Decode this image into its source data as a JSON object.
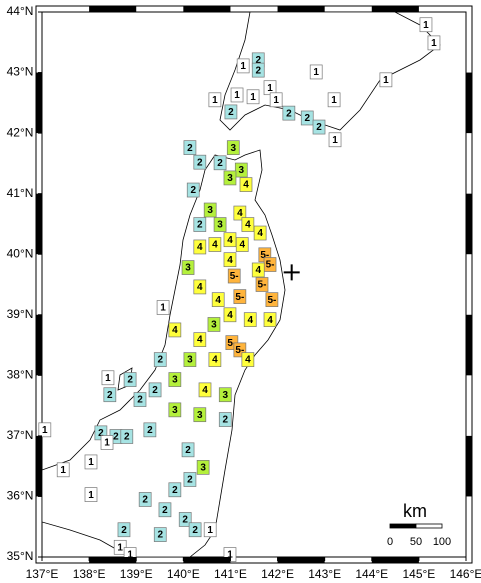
{
  "map": {
    "lonlim": [
      137,
      146
    ],
    "latlim": [
      35,
      44
    ],
    "xticks": [
      {
        "value": 137,
        "label": "137°E"
      },
      {
        "value": 138,
        "label": "138°E"
      },
      {
        "value": 139,
        "label": "139°E"
      },
      {
        "value": 140,
        "label": "140°E"
      },
      {
        "value": 141,
        "label": "141°E"
      },
      {
        "value": 142,
        "label": "142°E"
      },
      {
        "value": 143,
        "label": "143°E"
      },
      {
        "value": 144,
        "label": "144°E"
      },
      {
        "value": 145,
        "label": "145°E"
      },
      {
        "value": 146,
        "label": "146°E"
      }
    ],
    "yticks": [
      {
        "value": 35,
        "label": "35°N"
      },
      {
        "value": 36,
        "label": "36°N"
      },
      {
        "value": 37,
        "label": "37°N"
      },
      {
        "value": 38,
        "label": "38°N"
      },
      {
        "value": 39,
        "label": "39°N"
      },
      {
        "value": 40,
        "label": "40°N"
      },
      {
        "value": 41,
        "label": "41°N"
      },
      {
        "value": 42,
        "label": "42°N"
      },
      {
        "value": 43,
        "label": "43°N"
      },
      {
        "value": 44,
        "label": "44°N"
      }
    ],
    "intensity_colors": {
      "1": "#ffffff",
      "2": "#a6e3e3",
      "3": "#b4f03c",
      "4": "#ffff3c",
      "5-": "#ffb43c"
    },
    "epicenter": {
      "lon": 142.3,
      "lat": 39.7
    },
    "scale": {
      "unit": "km",
      "ticks": [
        0,
        50,
        100
      ]
    },
    "stations": [
      {
        "lon": 141.59,
        "lat": 43.21,
        "intensity": "2"
      },
      {
        "lon": 141.59,
        "lat": 43.04,
        "intensity": "2"
      },
      {
        "lon": 141.27,
        "lat": 43.11,
        "intensity": "1"
      },
      {
        "lon": 141.14,
        "lat": 42.63,
        "intensity": "1"
      },
      {
        "lon": 141.48,
        "lat": 42.6,
        "intensity": "1"
      },
      {
        "lon": 141.84,
        "lat": 42.75,
        "intensity": "1"
      },
      {
        "lon": 141.97,
        "lat": 42.55,
        "intensity": "1"
      },
      {
        "lon": 141.01,
        "lat": 42.35,
        "intensity": "2"
      },
      {
        "lon": 142.24,
        "lat": 42.33,
        "intensity": "2"
      },
      {
        "lon": 142.63,
        "lat": 42.25,
        "intensity": "2"
      },
      {
        "lon": 142.88,
        "lat": 42.1,
        "intensity": "2"
      },
      {
        "lon": 142.82,
        "lat": 43.01,
        "intensity": "1"
      },
      {
        "lon": 143.2,
        "lat": 42.55,
        "intensity": "1"
      },
      {
        "lon": 143.22,
        "lat": 41.89,
        "intensity": "1"
      },
      {
        "lon": 145.15,
        "lat": 43.79,
        "intensity": "1"
      },
      {
        "lon": 145.32,
        "lat": 43.49,
        "intensity": "1"
      },
      {
        "lon": 144.3,
        "lat": 42.88,
        "intensity": "1"
      },
      {
        "lon": 140.67,
        "lat": 42.55,
        "intensity": "1"
      },
      {
        "lon": 140.14,
        "lat": 41.76,
        "intensity": "2"
      },
      {
        "lon": 140.35,
        "lat": 41.52,
        "intensity": "2"
      },
      {
        "lon": 140.78,
        "lat": 41.51,
        "intensity": "2"
      },
      {
        "lon": 141.06,
        "lat": 41.76,
        "intensity": "3"
      },
      {
        "lon": 141.23,
        "lat": 41.39,
        "intensity": "3"
      },
      {
        "lon": 141.33,
        "lat": 41.15,
        "intensity": "4"
      },
      {
        "lon": 140.99,
        "lat": 41.26,
        "intensity": "3"
      },
      {
        "lon": 140.21,
        "lat": 41.06,
        "intensity": "2"
      },
      {
        "lon": 140.57,
        "lat": 40.73,
        "intensity": "3"
      },
      {
        "lon": 140.35,
        "lat": 40.49,
        "intensity": "2"
      },
      {
        "lon": 140.78,
        "lat": 40.49,
        "intensity": "3"
      },
      {
        "lon": 141.2,
        "lat": 40.68,
        "intensity": "4"
      },
      {
        "lon": 141.37,
        "lat": 40.49,
        "intensity": "4"
      },
      {
        "lon": 140.99,
        "lat": 40.24,
        "intensity": "4"
      },
      {
        "lon": 140.35,
        "lat": 40.12,
        "intensity": "4"
      },
      {
        "lon": 140.67,
        "lat": 40.16,
        "intensity": "4"
      },
      {
        "lon": 141.25,
        "lat": 40.16,
        "intensity": "4"
      },
      {
        "lon": 141.63,
        "lat": 40.35,
        "intensity": "4"
      },
      {
        "lon": 141.73,
        "lat": 39.99,
        "intensity": "5-"
      },
      {
        "lon": 141.84,
        "lat": 39.83,
        "intensity": "5-"
      },
      {
        "lon": 141.08,
        "lat": 39.64,
        "intensity": "5-"
      },
      {
        "lon": 140.99,
        "lat": 39.91,
        "intensity": "4"
      },
      {
        "lon": 140.1,
        "lat": 39.78,
        "intensity": "3"
      },
      {
        "lon": 140.35,
        "lat": 39.46,
        "intensity": "4"
      },
      {
        "lon": 140.74,
        "lat": 39.25,
        "intensity": "4"
      },
      {
        "lon": 141.2,
        "lat": 39.3,
        "intensity": "5-"
      },
      {
        "lon": 141.67,
        "lat": 39.5,
        "intensity": "5-"
      },
      {
        "lon": 141.88,
        "lat": 39.25,
        "intensity": "5-"
      },
      {
        "lon": 141.59,
        "lat": 39.74,
        "intensity": "4"
      },
      {
        "lon": 141.84,
        "lat": 38.92,
        "intensity": "4"
      },
      {
        "lon": 140.99,
        "lat": 39.0,
        "intensity": "4"
      },
      {
        "lon": 141.42,
        "lat": 38.92,
        "intensity": "4"
      },
      {
        "lon": 140.65,
        "lat": 38.84,
        "intensity": "3"
      },
      {
        "lon": 139.82,
        "lat": 38.75,
        "intensity": "4"
      },
      {
        "lon": 139.57,
        "lat": 39.12,
        "intensity": "1"
      },
      {
        "lon": 140.35,
        "lat": 38.59,
        "intensity": "4"
      },
      {
        "lon": 141.03,
        "lat": 38.54,
        "intensity": "5-"
      },
      {
        "lon": 141.2,
        "lat": 38.42,
        "intensity": "5-"
      },
      {
        "lon": 140.67,
        "lat": 38.26,
        "intensity": "4"
      },
      {
        "lon": 141.37,
        "lat": 38.26,
        "intensity": "4"
      },
      {
        "lon": 140.14,
        "lat": 38.26,
        "intensity": "3"
      },
      {
        "lon": 139.51,
        "lat": 38.26,
        "intensity": "2"
      },
      {
        "lon": 139.82,
        "lat": 37.93,
        "intensity": "3"
      },
      {
        "lon": 140.46,
        "lat": 37.76,
        "intensity": "4"
      },
      {
        "lon": 140.89,
        "lat": 37.68,
        "intensity": "3"
      },
      {
        "lon": 139.4,
        "lat": 37.76,
        "intensity": "2"
      },
      {
        "lon": 138.87,
        "lat": 37.93,
        "intensity": "2"
      },
      {
        "lon": 138.44,
        "lat": 37.68,
        "intensity": "2"
      },
      {
        "lon": 139.08,
        "lat": 37.6,
        "intensity": "2"
      },
      {
        "lon": 139.29,
        "lat": 37.1,
        "intensity": "2"
      },
      {
        "lon": 138.25,
        "lat": 37.05,
        "intensity": "2"
      },
      {
        "lon": 138.57,
        "lat": 36.99,
        "intensity": "2"
      },
      {
        "lon": 138.8,
        "lat": 36.99,
        "intensity": "2"
      },
      {
        "lon": 139.82,
        "lat": 37.43,
        "intensity": "3"
      },
      {
        "lon": 140.35,
        "lat": 37.35,
        "intensity": "3"
      },
      {
        "lon": 140.89,
        "lat": 37.27,
        "intensity": "2"
      },
      {
        "lon": 140.1,
        "lat": 36.77,
        "intensity": "2"
      },
      {
        "lon": 140.42,
        "lat": 36.48,
        "intensity": "3"
      },
      {
        "lon": 140.14,
        "lat": 36.28,
        "intensity": "2"
      },
      {
        "lon": 139.82,
        "lat": 36.11,
        "intensity": "2"
      },
      {
        "lon": 139.61,
        "lat": 35.78,
        "intensity": "2"
      },
      {
        "lon": 140.04,
        "lat": 35.62,
        "intensity": "2"
      },
      {
        "lon": 140.25,
        "lat": 35.45,
        "intensity": "2"
      },
      {
        "lon": 139.19,
        "lat": 35.95,
        "intensity": "2"
      },
      {
        "lon": 138.74,
        "lat": 35.45,
        "intensity": "2"
      },
      {
        "lon": 139.51,
        "lat": 35.37,
        "intensity": "2"
      },
      {
        "lon": 138.4,
        "lat": 37.96,
        "intensity": "1"
      },
      {
        "lon": 138.38,
        "lat": 36.89,
        "intensity": "1"
      },
      {
        "lon": 138.04,
        "lat": 36.57,
        "intensity": "1"
      },
      {
        "lon": 138.04,
        "lat": 36.03,
        "intensity": "1"
      },
      {
        "lon": 137.45,
        "lat": 36.44,
        "intensity": "1"
      },
      {
        "lon": 138.66,
        "lat": 35.16,
        "intensity": "1"
      },
      {
        "lon": 138.87,
        "lat": 35.04,
        "intensity": "1"
      },
      {
        "lon": 140.57,
        "lat": 35.45,
        "intensity": "1"
      },
      {
        "lon": 137.06,
        "lat": 37.1,
        "intensity": "1"
      },
      {
        "lon": 140.99,
        "lat": 35.04,
        "intensity": "1"
      }
    ]
  }
}
